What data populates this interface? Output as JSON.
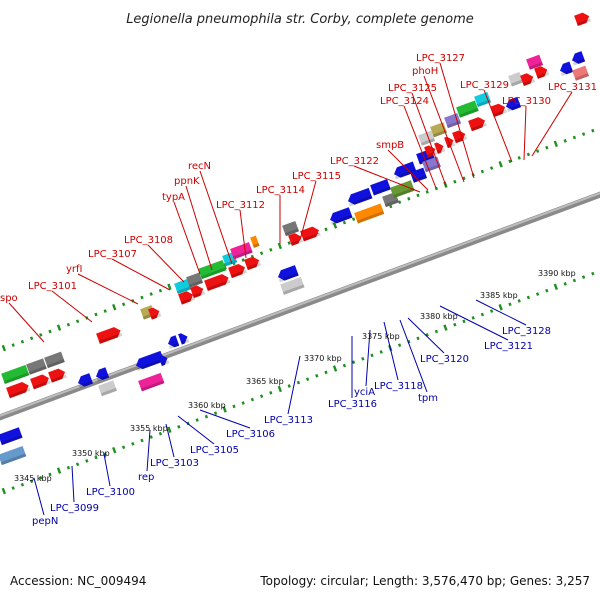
{
  "title": "Legionella pneumophila str. Corby, complete genome",
  "footer": {
    "accession": "Accession: NC_009494",
    "topology": "Topology: circular; Length: 3,576,470 bp; Genes: 3,257"
  },
  "colors": {
    "backbone": "#9a9a9a",
    "tick": "#1f8f1f",
    "forward_label": "#cc0000",
    "reverse_label": "#0000aa",
    "forward_gene": "#ee0000",
    "reverse_gene": "#0000ee"
  },
  "scale_labels": [
    "3345 kbp",
    "3350 kbp",
    "3355 kbp",
    "3360 kbp",
    "3365 kbp",
    "3370 kbp",
    "3375 kbp",
    "3380 kbp",
    "3385 kbp",
    "3390 kbp"
  ],
  "forward_labels": [
    "spo",
    "LPC_3101",
    "yrfI",
    "LPC_3107",
    "LPC_3108",
    "typA",
    "ppnK",
    "recN",
    "LPC_3112",
    "LPC_3114",
    "LPC_3115",
    "LPC_3122",
    "smpB",
    "LPC_3124",
    "LPC_3125",
    "phoH",
    "LPC_3127",
    "LPC_3129",
    "LPC_3130",
    "LPC_3131"
  ],
  "reverse_labels": [
    "pepN",
    "LPC_3099",
    "LPC_3100",
    "rep",
    "LPC_3103",
    "LPC_3105",
    "LPC_3106",
    "LPC_3113",
    "LPC_3116",
    "yciA",
    "LPC_3118",
    "tpm",
    "LPC_3120",
    "LPC_3121",
    "LPC_3128"
  ]
}
